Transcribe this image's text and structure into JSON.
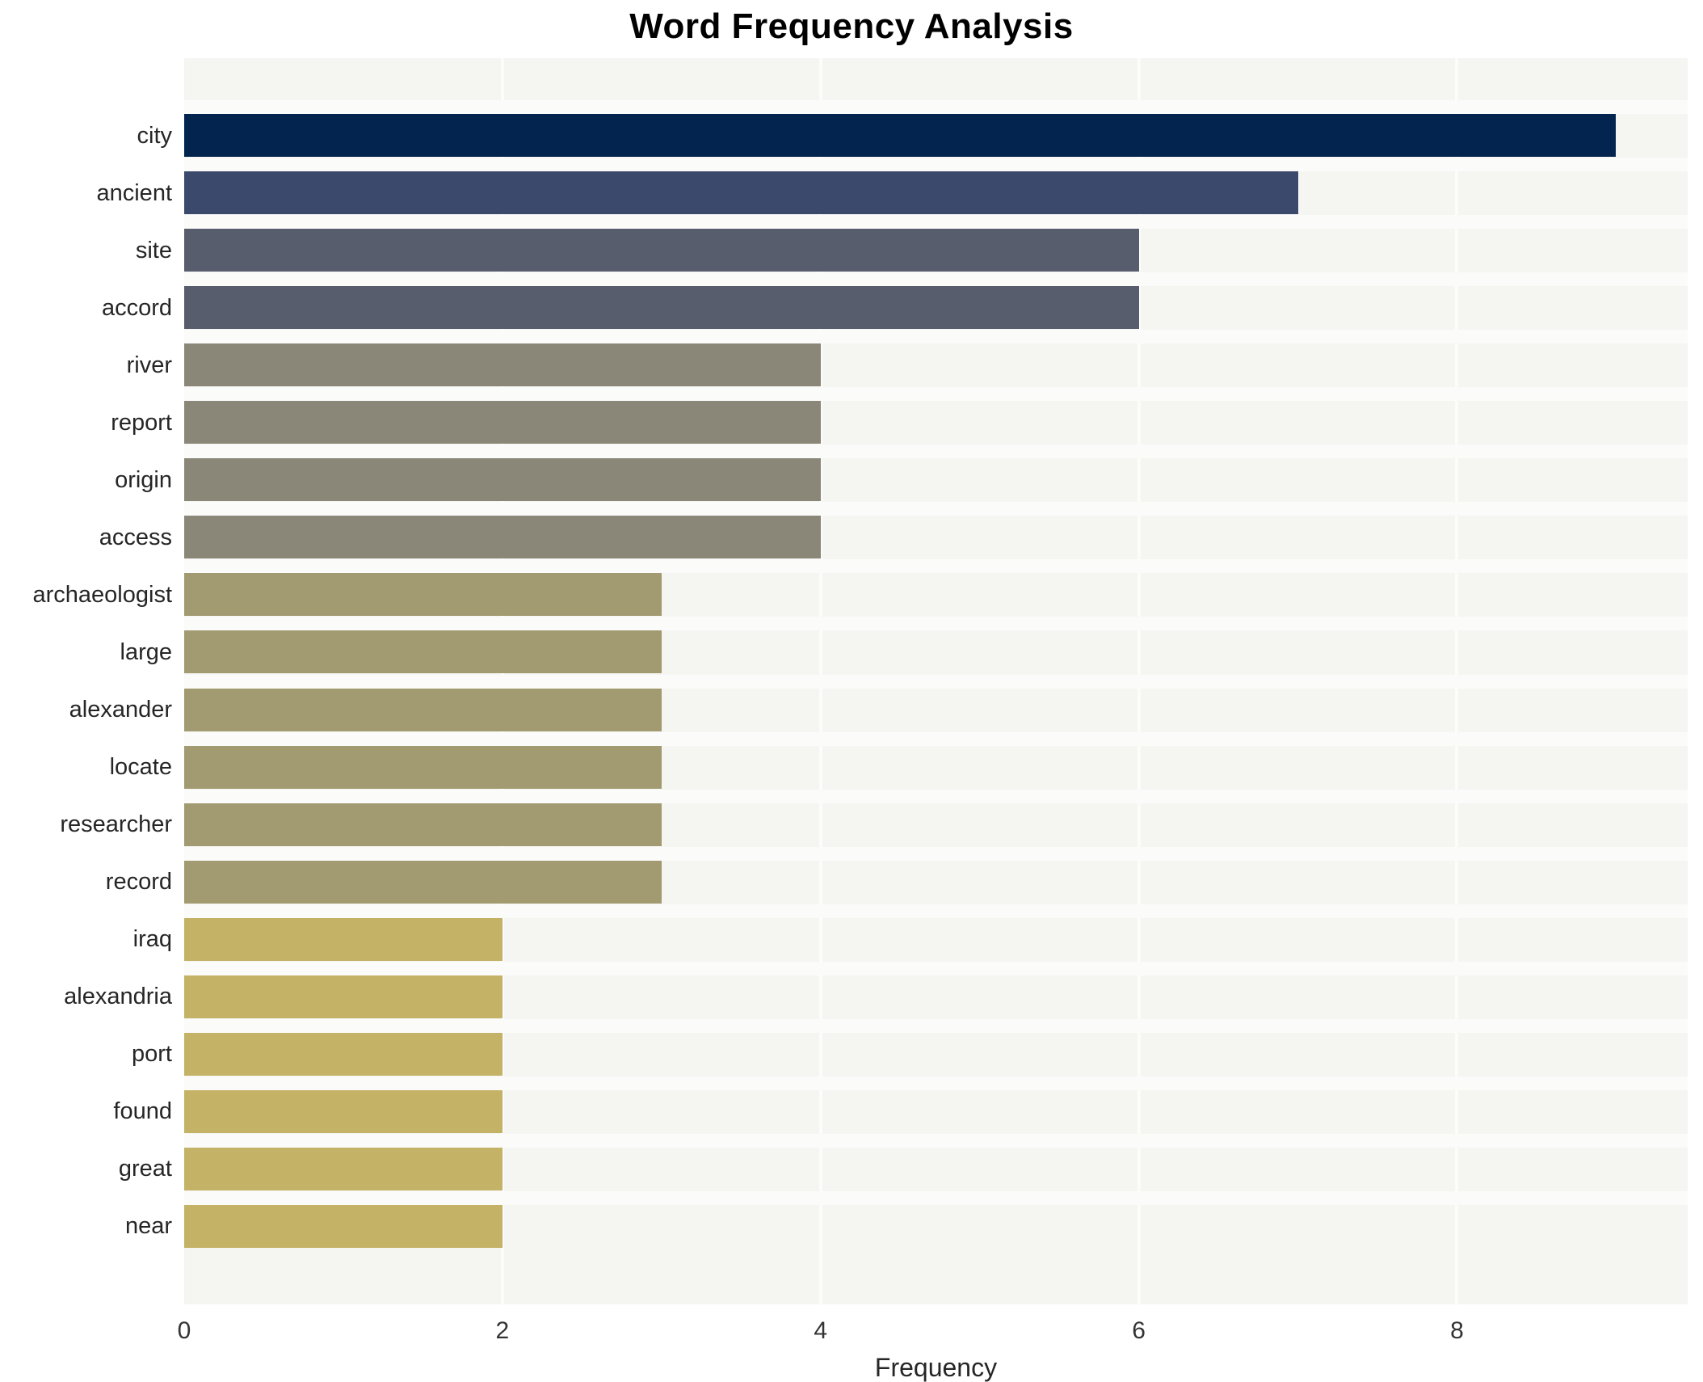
{
  "title": "Word Frequency Analysis",
  "xlabel": "Frequency",
  "chart_data": {
    "type": "bar",
    "orientation": "horizontal",
    "title": "Word Frequency Analysis",
    "xlabel": "Frequency",
    "ylabel": "",
    "categories": [
      "city",
      "ancient",
      "site",
      "accord",
      "river",
      "report",
      "origin",
      "access",
      "archaeologist",
      "large",
      "alexander",
      "locate",
      "researcher",
      "record",
      "iraq",
      "alexandria",
      "port",
      "found",
      "great",
      "near"
    ],
    "values": [
      9,
      7,
      6,
      6,
      4,
      4,
      4,
      4,
      3,
      3,
      3,
      3,
      3,
      3,
      2,
      2,
      2,
      2,
      2,
      2
    ],
    "bar_colors": [
      "#02244e",
      "#3b4a6c",
      "#575d6d",
      "#575d6d",
      "#8a8678",
      "#8a8678",
      "#8a8678",
      "#8a8678",
      "#a29a70",
      "#a29a70",
      "#a29a70",
      "#a29a70",
      "#a29a70",
      "#a29a70",
      "#c4b266",
      "#c4b266",
      "#c4b266",
      "#c4b266",
      "#c4b266",
      "#c4b266"
    ],
    "xlim": [
      0,
      9.45
    ],
    "x_ticks": [
      0,
      2,
      4,
      6,
      8
    ],
    "grid": "vertical white gridlines on light gray plot background",
    "legend": "none",
    "plot_bg": "#f5f5f2",
    "fig_bg": "#ffffff",
    "colormap_note": "cividis-like: dark navy (high freq) to gold (low freq)"
  }
}
